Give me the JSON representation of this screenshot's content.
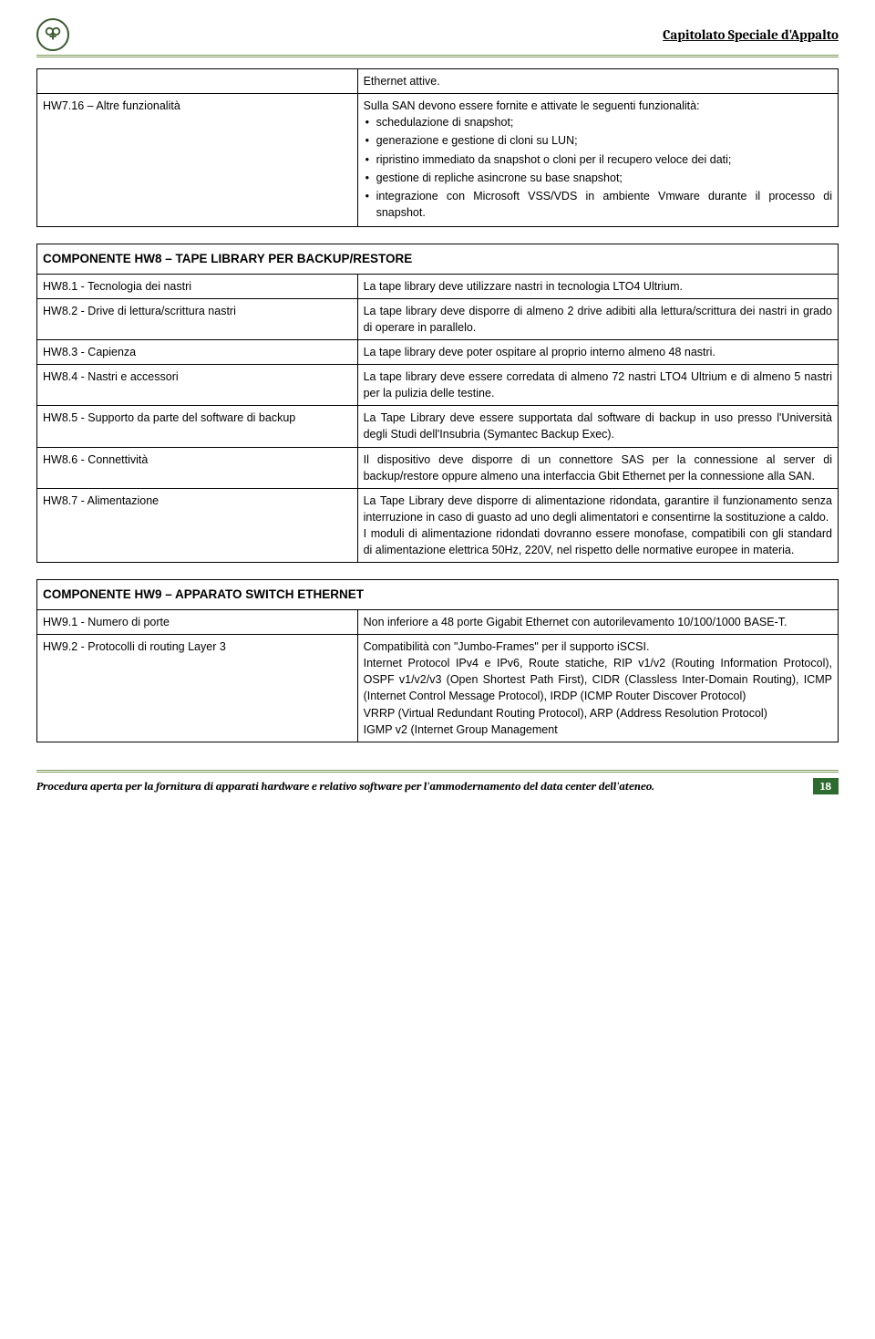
{
  "header": {
    "doc_title": "Capitolato Speciale d'Appalto"
  },
  "table1": {
    "row1_left": "",
    "row1_right": "Ethernet attive.",
    "row2_left": "HW7.16 – Altre funzionalità",
    "row2_right_intro": "Sulla SAN devono essere fornite e attivate le seguenti funzionalità:",
    "row2_bullets": [
      "schedulazione di snapshot;",
      "generazione e gestione di cloni su LUN;",
      "ripristino immediato da snapshot o cloni per il recupero veloce dei dati;",
      "gestione di repliche asincrone su base snapshot;",
      "integrazione con Microsoft VSS/VDS in ambiente Vmware durante il processo di snapshot."
    ]
  },
  "table2": {
    "heading_prefix": "COMPONENTE ",
    "heading_code": "HW8",
    "heading_suffix": " – TAPE LIBRARY PER BACKUP/RESTORE",
    "rows": [
      {
        "left": "HW8.1 - Tecnologia dei nastri",
        "right": "La tape library deve utilizzare nastri in tecnologia LTO4 Ultrium."
      },
      {
        "left": "HW8.2 - Drive di lettura/scrittura nastri",
        "right": "La tape library deve disporre di almeno 2 drive adibiti alla lettura/scrittura dei nastri in grado di operare in parallelo."
      },
      {
        "left": "HW8.3 - Capienza",
        "right": "La tape library deve poter ospitare al proprio interno almeno 48 nastri."
      },
      {
        "left": "HW8.4 - Nastri e accessori",
        "right": "La tape library deve essere corredata di almeno 72 nastri LTO4 Ultrium e di almeno 5 nastri per la pulizia delle testine."
      },
      {
        "left": "HW8.5 - Supporto da parte del software di backup",
        "right": "La Tape Library deve essere supportata dal software di backup in uso presso l'Università degli Studi dell'Insubria (Symantec Backup Exec)."
      },
      {
        "left": "HW8.6 - Connettività",
        "right": "Il dispositivo deve disporre di un connettore SAS per la connessione al server di backup/restore oppure almeno una interfaccia Gbit Ethernet per la connessione alla SAN."
      },
      {
        "left": "HW8.7 - Alimentazione",
        "right": "La Tape Library deve disporre di alimentazione ridondata, garantire il funzionamento senza interruzione in caso di guasto ad uno degli alimentatori e consentirne la sostituzione a caldo.\nI moduli di alimentazione ridondati dovranno essere monofase, compatibili con gli standard di alimentazione elettrica 50Hz, 220V, nel rispetto delle normative europee in materia."
      }
    ]
  },
  "table3": {
    "heading_prefix": "COMPONENTE ",
    "heading_code": "HW9",
    "heading_suffix": " – APPARATO SWITCH ETHERNET",
    "rows": [
      {
        "left": "HW9.1 - Numero di porte",
        "right": "Non inferiore a 48 porte Gigabit Ethernet con autorilevamento 10/100/1000 BASE-T."
      },
      {
        "left": "HW9.2 - Protocolli di routing Layer 3",
        "right": "Compatibilità con \"Jumbo-Frames\" per il supporto iSCSI.\nInternet Protocol IPv4 e IPv6, Route statiche, RIP v1/v2 (Routing Information Protocol), OSPF v1/v2/v3 (Open Shortest Path First), CIDR (Classless Inter-Domain Routing), ICMP (Internet Control Message Protocol), IRDP (ICMP Router Discover Protocol)\nVRRP (Virtual Redundant Routing Protocol), ARP (Address Resolution Protocol)\nIGMP v2 (Internet Group Management"
      }
    ]
  },
  "footer": {
    "text": "Procedura aperta per la fornitura di apparati hardware e relativo software per l'ammodernamento del data center dell'ateneo.",
    "page": "18"
  }
}
